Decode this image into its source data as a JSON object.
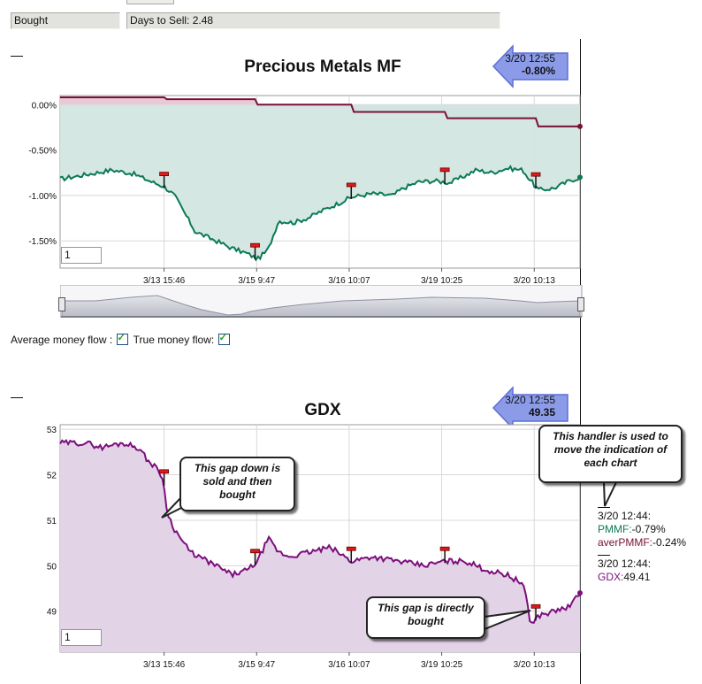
{
  "header": {
    "status_label": "Bought",
    "days_to_sell_label": "Days to Sell: 2.48"
  },
  "chart1": {
    "title": "Precious Metals MF",
    "indicator": {
      "time": "3/20 12:55",
      "value": "-0.80%"
    },
    "input_value": "1"
  },
  "chart2": {
    "title": "GDX",
    "indicator": {
      "time": "3/20 12:55",
      "value": "49.35"
    },
    "input_value": "1"
  },
  "money_flow": {
    "average_label": "Average money flow :",
    "true_label": "True money flow:"
  },
  "annotations": {
    "handler_note": [
      "This handler is used to",
      "move the indication of",
      "each chart"
    ],
    "gap_sold": [
      "This gap down is",
      "sold and then",
      "bought"
    ],
    "gap_bought": [
      "This gap is directly",
      "bought"
    ]
  },
  "legend": {
    "time1": "3/20 12:44:",
    "pmmf_label": "PMMF:",
    "pmmf_value": "-0.79%",
    "aver_label": "averPMMF:",
    "aver_value": "-0.24%",
    "time2": "3/20 12:44:",
    "gdx_label": "GDX:",
    "gdx_value": "49.41"
  },
  "colors": {
    "green_line": "#0a7a55",
    "maroon_line": "#7a0f35",
    "purple_line": "#7c0f7c",
    "green_fill": "#d3e6e0",
    "purple_fill": "#e3d3e6",
    "gray_band": "#c7c8d2",
    "marker": "#e01a1a"
  },
  "chart_data": [
    {
      "type": "line",
      "title": "Precious Metals MF",
      "x_tick_labels": [
        "3/13 15:46",
        "3/15 9:47",
        "3/16 10:07",
        "3/19 10:25",
        "3/20 10:13"
      ],
      "y_tick_labels": [
        "0.00%",
        "-0.50%",
        "-1.00%",
        "-1.50%"
      ],
      "ylim": [
        -1.8,
        0.1
      ],
      "grid": true,
      "series": [
        {
          "x": [
            0,
            0.1,
            0.14,
            0.18,
            0.2,
            0.22,
            0.24,
            0.26,
            0.3,
            0.33,
            0.36,
            0.38,
            0.4,
            0.42,
            0.45,
            0.48,
            0.5,
            0.53,
            0.56,
            0.6,
            0.64,
            0.66,
            0.69,
            0.72,
            0.75,
            0.78,
            0.8,
            0.83,
            0.86,
            0.89,
            0.9,
            0.92,
            0.95,
            0.98,
            1
          ],
          "y": [
            -0.82,
            -0.72,
            -0.76,
            -0.86,
            -0.9,
            -1.0,
            -1.2,
            -1.4,
            -1.5,
            -1.58,
            -1.64,
            -1.7,
            -1.6,
            -1.28,
            -1.3,
            -1.24,
            -1.18,
            -1.1,
            -1.02,
            -0.98,
            -1.0,
            -0.92,
            -0.85,
            -0.84,
            -0.86,
            -0.78,
            -0.72,
            -0.75,
            -0.7,
            -0.72,
            -0.8,
            -0.94,
            -0.92,
            -0.84,
            -0.8
          ]
        },
        {
          "x": [
            0,
            0.2,
            0.205,
            0.375,
            0.38,
            0.56,
            0.565,
            0.74,
            0.745,
            0.915,
            0.92,
            1
          ],
          "y": [
            0.08,
            0.08,
            0.06,
            0.06,
            0.0,
            0.0,
            -0.08,
            -0.08,
            -0.15,
            -0.15,
            -0.24,
            -0.24
          ]
        }
      ],
      "markers_x": [
        0.2,
        0.375,
        0.56,
        0.74,
        0.915
      ]
    },
    {
      "type": "line",
      "title": "GDX",
      "x_tick_labels": [
        "3/13 15:46",
        "3/15 9:47",
        "3/16 10:07",
        "3/19 10:25",
        "3/20 10:13"
      ],
      "y_tick_labels": [
        "53",
        "52",
        "51",
        "50",
        "49"
      ],
      "ylim": [
        48.1,
        53.1
      ],
      "grid": true,
      "series": [
        {
          "x": [
            0,
            0.05,
            0.08,
            0.12,
            0.15,
            0.17,
            0.19,
            0.2,
            0.205,
            0.22,
            0.25,
            0.3,
            0.33,
            0.36,
            0.38,
            0.4,
            0.42,
            0.44,
            0.48,
            0.52,
            0.56,
            0.6,
            0.65,
            0.7,
            0.74,
            0.78,
            0.82,
            0.86,
            0.89,
            0.9,
            0.905,
            0.92,
            0.95,
            0.98,
            1
          ],
          "y": [
            52.7,
            52.7,
            52.6,
            52.7,
            52.6,
            52.3,
            52.1,
            51.8,
            51.2,
            50.8,
            50.3,
            50.0,
            49.8,
            49.9,
            50.1,
            50.6,
            50.3,
            50.2,
            50.3,
            50.4,
            50.1,
            50.2,
            50.1,
            50.0,
            50.1,
            50.1,
            49.9,
            49.8,
            49.6,
            49.1,
            48.7,
            48.9,
            49.0,
            49.1,
            49.4
          ]
        }
      ],
      "markers_x": [
        0.2,
        0.375,
        0.56,
        0.74,
        0.915
      ]
    }
  ]
}
